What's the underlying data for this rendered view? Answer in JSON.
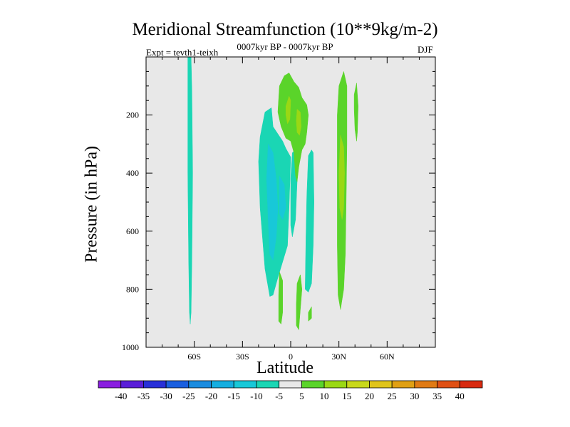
{
  "chart_data": {
    "type": "filled-contour",
    "title": "Meridional Streamfunction (10**9kg/m-2)",
    "subtitle": "0007kyr BP - 0007kyr BP",
    "left_label": "Expt = tevth1-teixh",
    "right_label": "DJF",
    "xlabel": "Latitude",
    "ylabel": "Pressure (in hPa)",
    "xlim": [
      -90,
      90
    ],
    "ylim": [
      1000,
      0
    ],
    "x_ticks": [
      {
        "value": -60,
        "label": "60S"
      },
      {
        "value": -30,
        "label": "30S"
      },
      {
        "value": 0,
        "label": "0"
      },
      {
        "value": 30,
        "label": "30N"
      },
      {
        "value": 60,
        "label": "60N"
      }
    ],
    "y_ticks": [
      {
        "value": 200,
        "label": "200"
      },
      {
        "value": 400,
        "label": "400"
      },
      {
        "value": 600,
        "label": "600"
      },
      {
        "value": 800,
        "label": "800"
      },
      {
        "value": 1000,
        "label": "1000"
      }
    ],
    "colorbar": {
      "labels": [
        "-40",
        "-35",
        "-30",
        "-25",
        "-20",
        "-15",
        "-10",
        "-5",
        "5",
        "10",
        "15",
        "20",
        "25",
        "30",
        "35",
        "40"
      ],
      "colors": [
        "#8a1fe0",
        "#5a1ed8",
        "#2830d8",
        "#1a5fe0",
        "#1a8ce0",
        "#15aee0",
        "#18c8d8",
        "#1ad6b4",
        "#e8e8e8",
        "#5ad42a",
        "#9ad814",
        "#c8d81a",
        "#e0c41a",
        "#e0a014",
        "#e07a14",
        "#e05014",
        "#d82a10"
      ]
    },
    "regions": [
      {
        "level": "-10",
        "color": "#1ad6b4",
        "points": [
          [
            -64,
            0
          ],
          [
            -62,
            0
          ],
          [
            -61.5,
            120
          ],
          [
            -61,
            400
          ],
          [
            -61.5,
            700
          ],
          [
            -62,
            880
          ],
          [
            -62.5,
            920
          ],
          [
            -63,
            880
          ],
          [
            -63.5,
            700
          ],
          [
            -64,
            400
          ],
          [
            -64,
            120
          ]
        ]
      },
      {
        "level": "-10",
        "color": "#1ad6b4",
        "points": [
          [
            -19,
            275
          ],
          [
            -16,
            190
          ],
          [
            -12,
            175
          ],
          [
            -11,
            240
          ],
          [
            -5,
            290
          ],
          [
            -3,
            315
          ],
          [
            0,
            345
          ],
          [
            -1,
            520
          ],
          [
            -2,
            650
          ],
          [
            -8,
            760
          ],
          [
            -11,
            820
          ],
          [
            -13,
            825
          ],
          [
            -16,
            730
          ],
          [
            -19,
            520
          ],
          [
            -20,
            360
          ]
        ]
      },
      {
        "level": "-15",
        "color": "#18c8d8",
        "points": [
          [
            -14,
            300
          ],
          [
            -11,
            330
          ],
          [
            -9,
            420
          ],
          [
            -8,
            520
          ],
          [
            -9,
            620
          ],
          [
            -11,
            700
          ],
          [
            -13,
            680
          ],
          [
            -14,
            560
          ],
          [
            -15,
            420
          ]
        ]
      },
      {
        "level": "-15",
        "color": "#18c8d8",
        "points": [
          [
            -7,
            410
          ],
          [
            -4,
            440
          ],
          [
            -3,
            520
          ],
          [
            -5,
            560
          ],
          [
            -7,
            540
          ]
        ]
      },
      {
        "level": "-10",
        "color": "#1ad6b4",
        "points": [
          [
            1,
            330
          ],
          [
            3,
            320
          ],
          [
            4,
            430
          ],
          [
            3,
            560
          ],
          [
            1,
            620
          ],
          [
            0,
            580
          ],
          [
            0,
            420
          ]
        ]
      },
      {
        "level": "-10",
        "color": "#1ad6b4",
        "points": [
          [
            11,
            340
          ],
          [
            13,
            320
          ],
          [
            14,
            330
          ],
          [
            14.5,
            500
          ],
          [
            14,
            650
          ],
          [
            13,
            780
          ],
          [
            11,
            810
          ],
          [
            9,
            800
          ],
          [
            9.5,
            620
          ],
          [
            10,
            480
          ]
        ]
      },
      {
        "level": "5",
        "color": "#5ad42a",
        "points": [
          [
            -7,
            100
          ],
          [
            -4,
            65
          ],
          [
            -1,
            55
          ],
          [
            2,
            85
          ],
          [
            5,
            105
          ],
          [
            7,
            140
          ],
          [
            10,
            165
          ],
          [
            11,
            200
          ],
          [
            10,
            260
          ],
          [
            9,
            300
          ],
          [
            7,
            320
          ],
          [
            5,
            380
          ],
          [
            4,
            430
          ],
          [
            3,
            410
          ],
          [
            2,
            330
          ],
          [
            0,
            290
          ],
          [
            -3,
            280
          ],
          [
            -6,
            240
          ],
          [
            -8,
            190
          ]
        ]
      },
      {
        "level": "10",
        "color": "#9ad814",
        "points": [
          [
            -3,
            170
          ],
          [
            -1,
            135
          ],
          [
            0,
            150
          ],
          [
            -0.5,
            215
          ],
          [
            -2,
            230
          ],
          [
            -3,
            200
          ]
        ]
      },
      {
        "level": "10",
        "color": "#9ad814",
        "points": [
          [
            4,
            180
          ],
          [
            6,
            190
          ],
          [
            6.5,
            240
          ],
          [
            5.5,
            270
          ],
          [
            4,
            260
          ],
          [
            3.5,
            220
          ]
        ]
      },
      {
        "level": "5",
        "color": "#5ad42a",
        "points": [
          [
            30,
            100
          ],
          [
            33,
            50
          ],
          [
            35,
            100
          ],
          [
            35,
            300
          ],
          [
            34.5,
            500
          ],
          [
            34,
            680
          ],
          [
            33,
            800
          ],
          [
            31,
            870
          ],
          [
            29.5,
            820
          ],
          [
            29,
            650
          ],
          [
            29,
            400
          ],
          [
            29,
            200
          ]
        ]
      },
      {
        "level": "10",
        "color": "#9ad814",
        "points": [
          [
            31,
            270
          ],
          [
            33,
            310
          ],
          [
            33.5,
            400
          ],
          [
            33,
            520
          ],
          [
            32,
            560
          ],
          [
            30.5,
            520
          ],
          [
            30,
            400
          ]
        ]
      },
      {
        "level": "5",
        "color": "#5ad42a",
        "points": [
          [
            39.5,
            130
          ],
          [
            41,
            90
          ],
          [
            42,
            170
          ],
          [
            41.5,
            260
          ],
          [
            41,
            290
          ],
          [
            40,
            250
          ],
          [
            39.5,
            180
          ]
        ]
      },
      {
        "level": "5",
        "color": "#5ad42a",
        "points": [
          [
            -7,
            740
          ],
          [
            -5,
            770
          ],
          [
            -5,
            880
          ],
          [
            -6,
            920
          ],
          [
            -7.5,
            910
          ],
          [
            -7.5,
            820
          ]
        ]
      },
      {
        "level": "5",
        "color": "#5ad42a",
        "points": [
          [
            4,
            780
          ],
          [
            6,
            750
          ],
          [
            7,
            800
          ],
          [
            6,
            870
          ],
          [
            5,
            940
          ],
          [
            3.5,
            925
          ],
          [
            3.5,
            850
          ]
        ]
      },
      {
        "level": "5",
        "color": "#5ad42a",
        "points": [
          [
            11,
            880
          ],
          [
            13,
            860
          ],
          [
            13,
            900
          ],
          [
            11,
            910
          ]
        ]
      }
    ]
  }
}
